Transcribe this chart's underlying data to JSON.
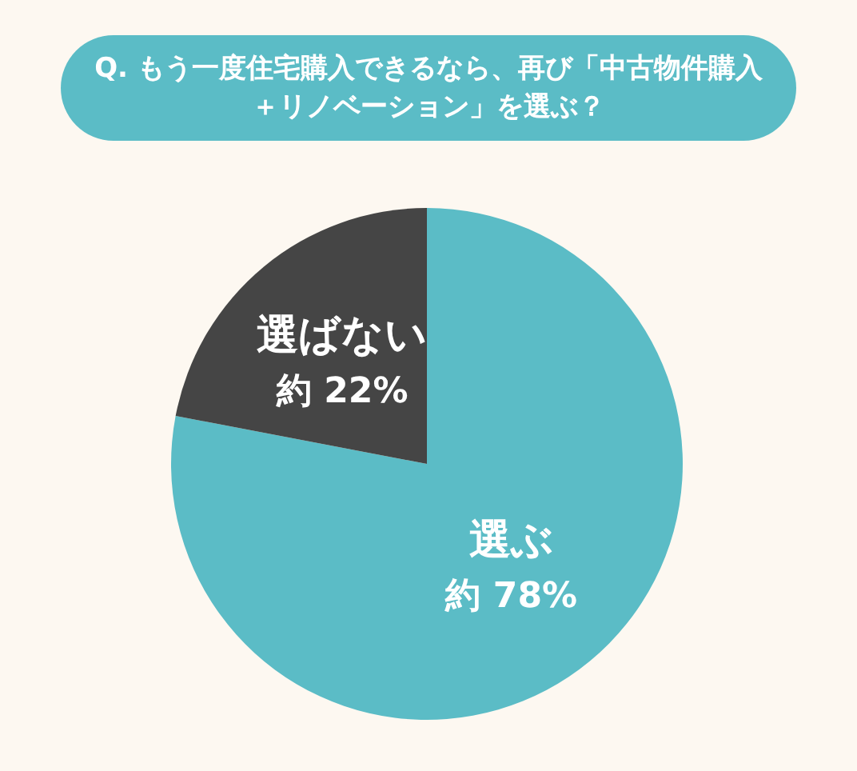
{
  "chart_data": {
    "type": "pie",
    "title": "Q. もう一度住宅購入できるなら、再び「中古物件購入＋リノベーション」を選ぶ？",
    "categories": [
      "選ぶ",
      "選ばない"
    ],
    "values": [
      78,
      22
    ],
    "colors": [
      "#5bbcc6",
      "#454545"
    ],
    "value_labels": [
      "約 78%",
      "約 22%"
    ]
  }
}
